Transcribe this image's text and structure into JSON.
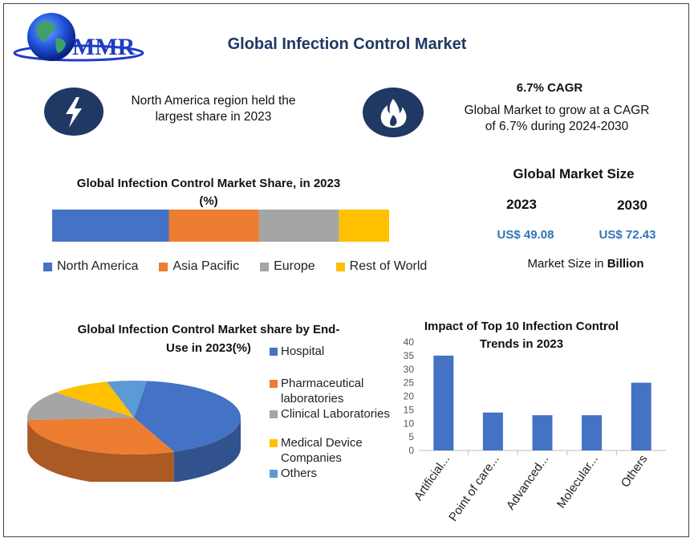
{
  "header": {
    "logo_text": "MMR",
    "title": "Global Infection Control Market"
  },
  "highlights": {
    "left": {
      "icon": "lightning-icon",
      "text_line1": "North America region held the",
      "text_line2": "largest share in 2023"
    },
    "right": {
      "icon": "flame-icon",
      "heading": "6.7% CAGR",
      "text_line1": "Global Market to grow at a CAGR",
      "text_line2": "of 6.7% during 2024-2030"
    }
  },
  "market_size": {
    "title": "Global Market Size",
    "year1": "2023",
    "year2": "2030",
    "value1": "US$ 49.08",
    "value2": "US$ 72.43",
    "note_prefix": "Market Size in ",
    "note_bold": "Billion"
  },
  "colors": {
    "north_america": "#4472c4",
    "asia_pacific": "#ed7d31",
    "europe": "#a5a5a5",
    "rest_of_world": "#ffc000",
    "hospital": "#4472c4",
    "pharma": "#ed7d31",
    "clinical": "#a5a5a5",
    "medical_device": "#ffc000",
    "others": "#5b9bd5",
    "navy": "#1f3864"
  },
  "chart_data": [
    {
      "type": "bar",
      "orientation": "horizontal-stacked",
      "title_line1": "Global Infection Control Market Share, in 2023",
      "title_line2": "(%)",
      "series": [
        {
          "name": "North America",
          "values": [
            35
          ]
        },
        {
          "name": "Asia Pacific",
          "values": [
            27
          ]
        },
        {
          "name": "Europe",
          "values": [
            24
          ]
        },
        {
          "name": "Rest of World",
          "values": [
            15
          ]
        }
      ],
      "legend_position": "bottom"
    },
    {
      "type": "pie",
      "title_line1": "Global Infection Control Market share by End-",
      "title_line2": "Use in 2023(%)",
      "slices": [
        {
          "name_line1": "Hospital",
          "name_line2": "",
          "value": 42
        },
        {
          "name_line1": "Pharmaceutical",
          "name_line2": "laboratories",
          "value": 30
        },
        {
          "name_line1": "Clinical Laboratories",
          "name_line2": "",
          "value": 13
        },
        {
          "name_line1": "Medical Device",
          "name_line2": "Companies",
          "value": 9
        },
        {
          "name_line1": "Others",
          "name_line2": "",
          "value": 6
        }
      ],
      "legend_position": "right"
    },
    {
      "type": "bar",
      "title_line1": "Impact of Top 10 Infection Control",
      "title_line2": "Trends in 2023",
      "categories": [
        "Artificial...",
        "Point of care...",
        "Advanced...",
        "Molecular...",
        "Others"
      ],
      "values": [
        35,
        14,
        13,
        13,
        25
      ],
      "yticks": [
        "0",
        "5",
        "10",
        "15",
        "20",
        "25",
        "30",
        "35",
        "40"
      ],
      "ylim": [
        0,
        40
      ],
      "grid": false
    }
  ]
}
